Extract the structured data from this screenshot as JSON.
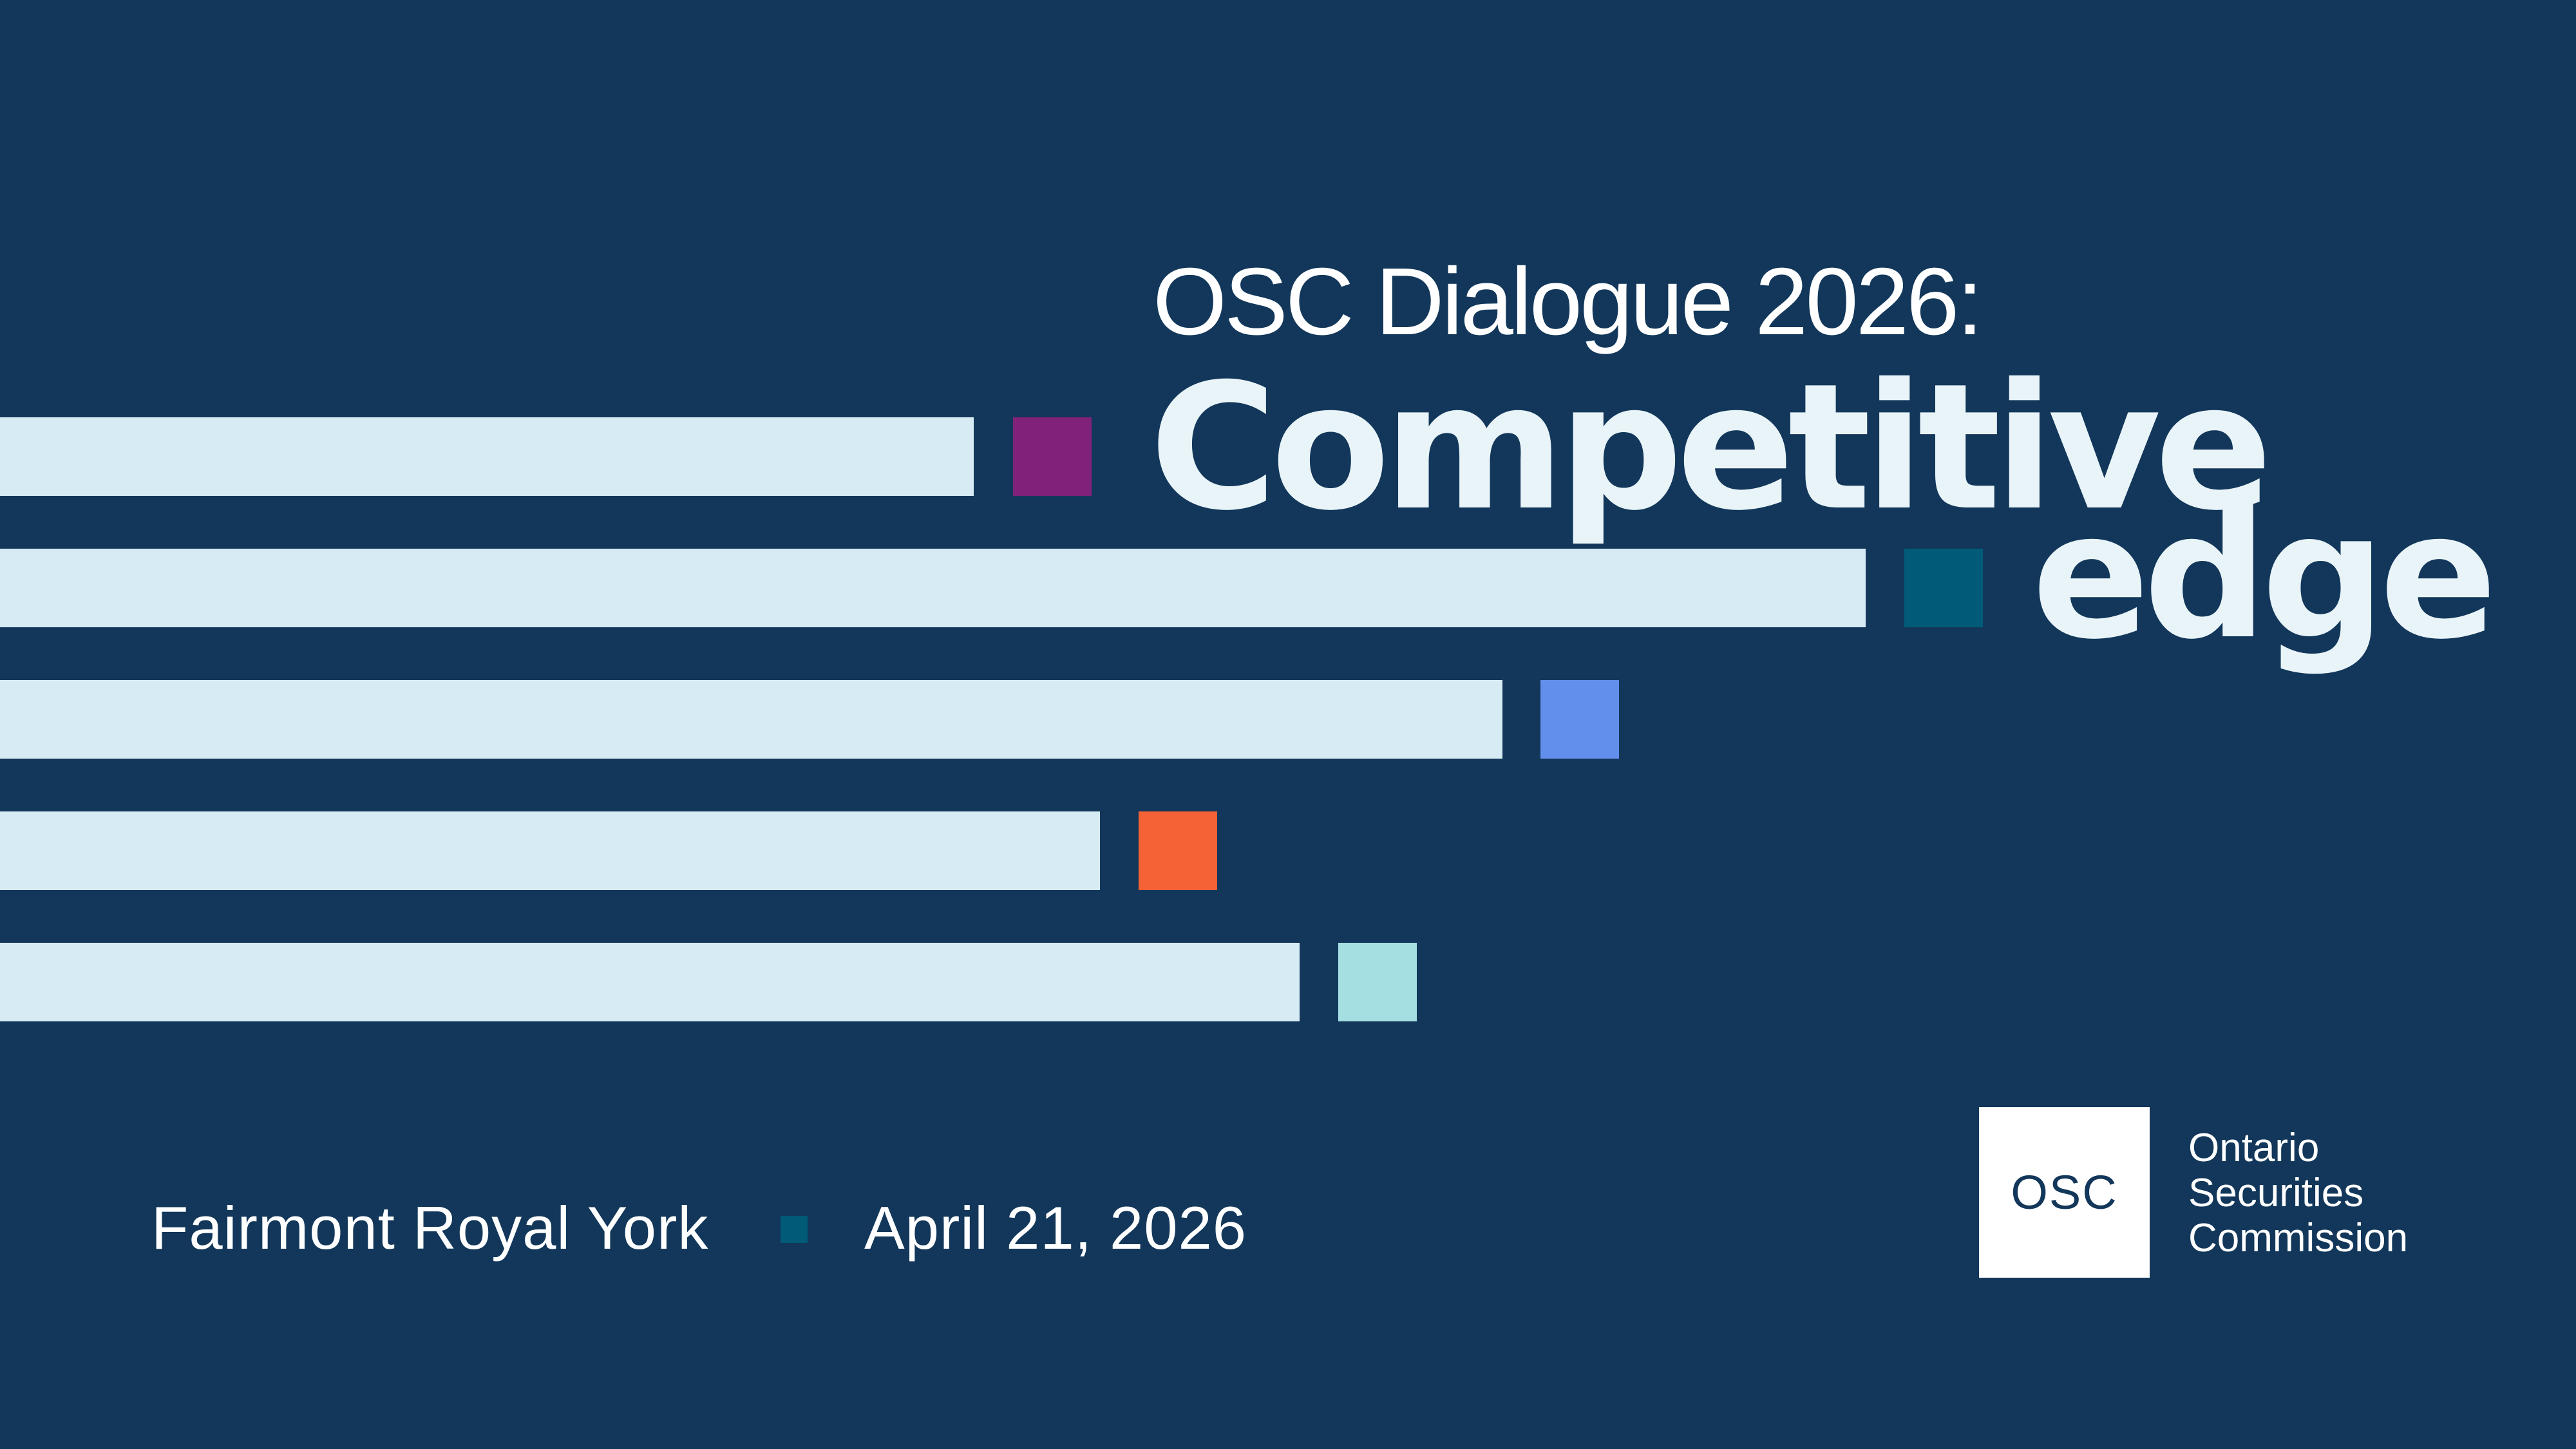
{
  "colors": {
    "background": "#12375a",
    "bar": "#d7ebf4",
    "square_purple": "#80227a",
    "square_teal": "#015b78",
    "square_blue": "#628eec",
    "square_orange": "#f56236",
    "square_aqua": "#a6dfe2",
    "logo_box": "#ffffff"
  },
  "header": {
    "subtitle": "OSC Dialogue 2026:",
    "title_line_1": "Competitive",
    "title_line_2": "edge"
  },
  "footer": {
    "venue": "Fairmont Royal York",
    "date": "April 21, 2026"
  },
  "logo": {
    "mark": "OSC",
    "org_line_1": "Ontario",
    "org_line_2": "Securities",
    "org_line_3": "Commission"
  }
}
